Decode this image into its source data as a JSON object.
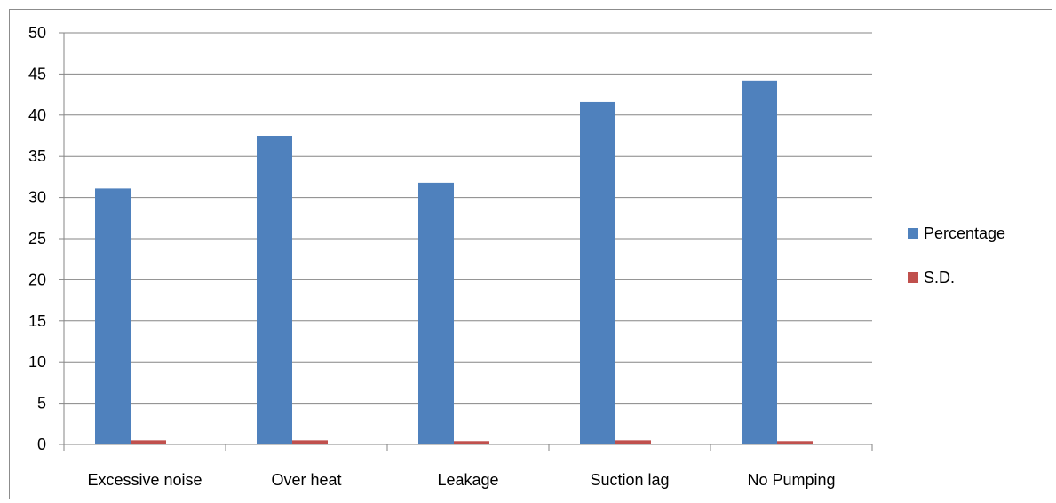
{
  "chart_data": {
    "type": "bar",
    "title": "",
    "xlabel": "",
    "ylabel": "",
    "categories": [
      "Excessive noise",
      "Over heat",
      "Leakage",
      "Suction lag",
      "No Pumping"
    ],
    "series": [
      {
        "name": "Percentage",
        "color": "#4f81bd",
        "values": [
          31.1,
          37.5,
          31.8,
          41.6,
          44.2
        ]
      },
      {
        "name": "S.D.",
        "color": "#c0504d",
        "values": [
          0.5,
          0.5,
          0.4,
          0.5,
          0.4
        ]
      }
    ],
    "ylim": [
      0,
      50
    ],
    "yticks": [
      "0",
      "5",
      "10",
      "15",
      "20",
      "25",
      "30",
      "35",
      "40",
      "45",
      "50"
    ],
    "grid": true,
    "legend_position": "right"
  }
}
